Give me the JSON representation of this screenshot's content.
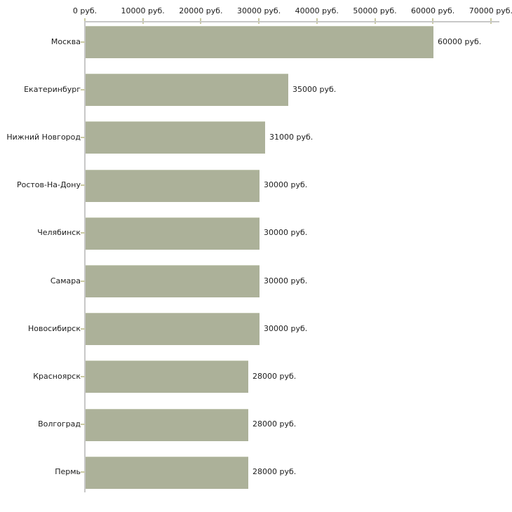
{
  "chart_data": {
    "type": "bar",
    "orientation": "horizontal",
    "title": "",
    "categories": [
      "Москва",
      "Екатеринбург",
      "Нижний Новгород",
      "Ростов-На-Дону",
      "Челябинск",
      "Самара",
      "Новосибирск",
      "Красноярск",
      "Волгоград",
      "Пермь"
    ],
    "values": [
      60000,
      35000,
      31000,
      30000,
      30000,
      30000,
      30000,
      28000,
      28000,
      28000
    ],
    "value_labels": [
      "60000 руб.",
      "35000 руб.",
      "31000 руб.",
      "30000 руб.",
      "30000 руб.",
      "30000 руб.",
      "30000 руб.",
      "28000 руб.",
      "28000 руб.",
      "28000 руб."
    ],
    "x_tick_values": [
      0,
      10000,
      20000,
      30000,
      40000,
      50000,
      60000,
      70000
    ],
    "x_tick_labels": [
      "0 руб.",
      "10000 руб.",
      "20000 руб.",
      "30000 руб.",
      "40000 руб.",
      "50000 руб.",
      "60000 руб.",
      "70000 руб."
    ],
    "xlim": [
      0,
      70000
    ],
    "unit": "руб.",
    "grid": false,
    "legend": false,
    "colors": {
      "bar": "#acb199",
      "bar_top_edge": "#c3c8b2",
      "axis_line": "#c8c8c8",
      "tick_mark": "#c9c9a2",
      "text": "#1c1c1c",
      "background": "#ffffff"
    }
  }
}
